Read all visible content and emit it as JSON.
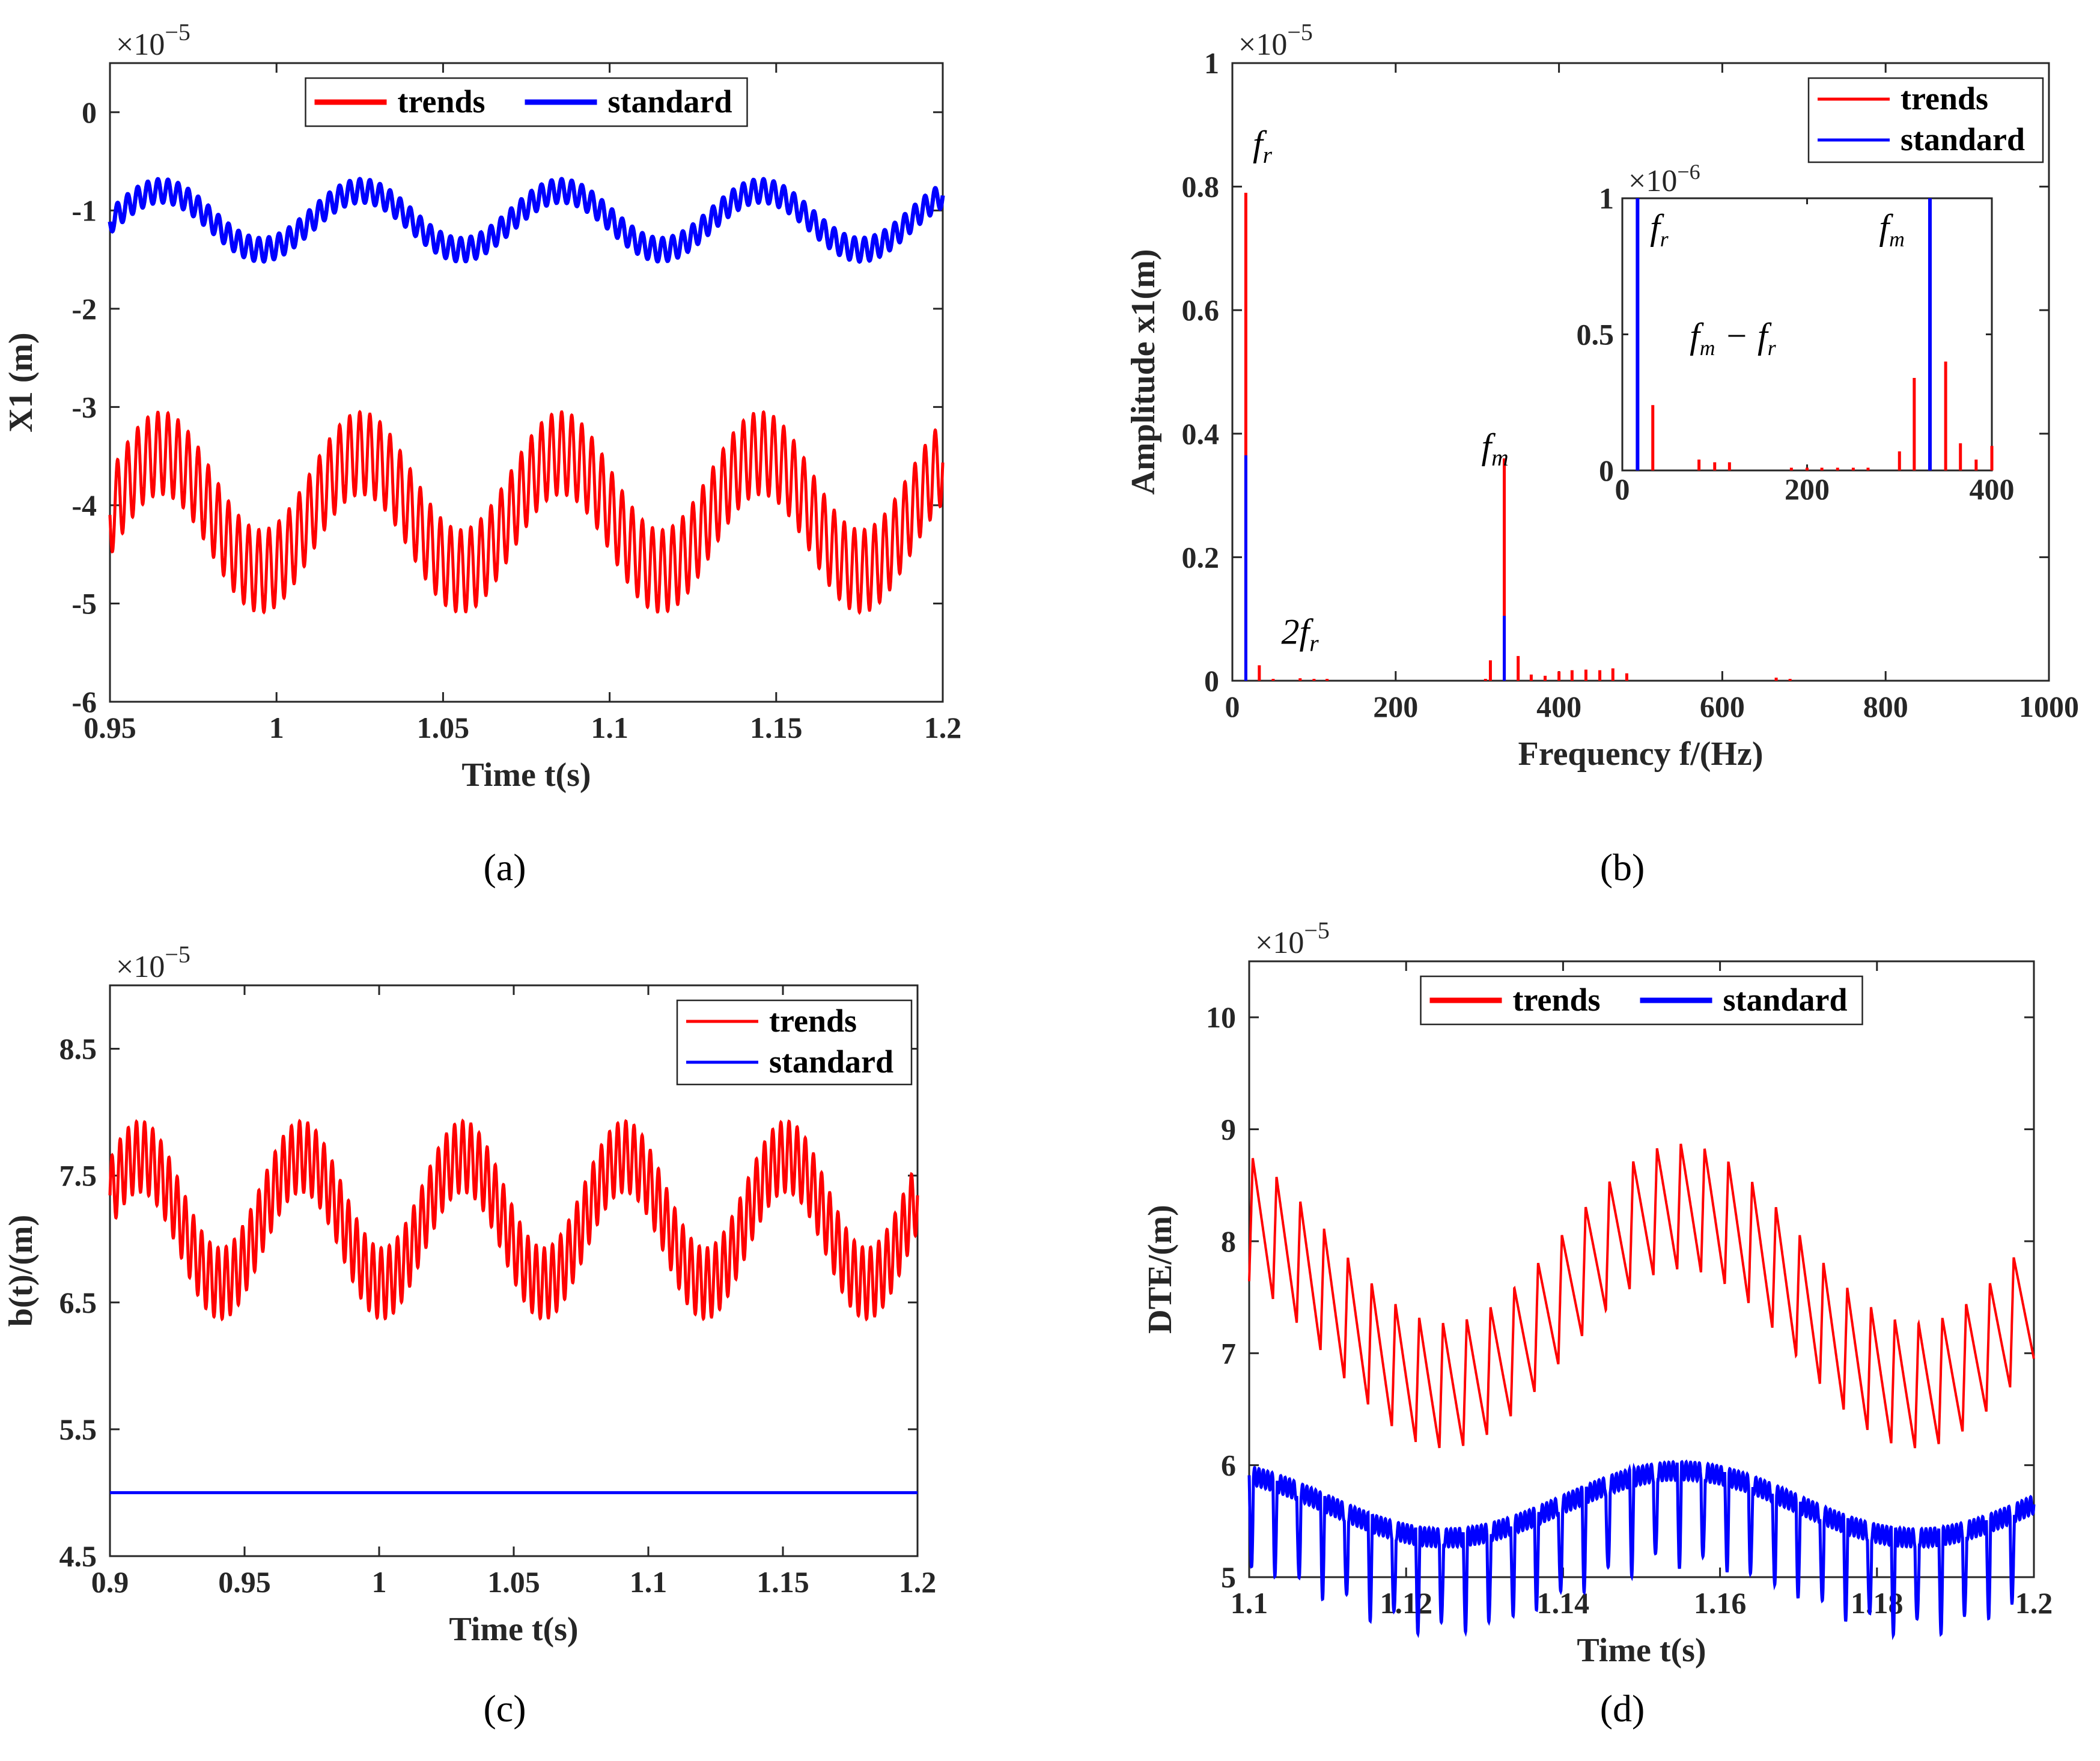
{
  "chart_data": [
    {
      "id": "a",
      "type": "line",
      "caption": "(a)",
      "xlabel": "Time t(s)",
      "ylabel": "X1 (m)",
      "multiplier": "×10",
      "multiplier_exp": "−5",
      "xlim": [
        0.95,
        1.2
      ],
      "ylim": [
        -6,
        0.5
      ],
      "xticks": [
        0.95,
        1,
        1.05,
        1.1,
        1.15,
        1.2
      ],
      "xticklabels": [
        "0.95",
        "1",
        "1.05",
        "1.1",
        "1.15",
        "1.2"
      ],
      "yticks": [
        -6,
        -5,
        -4,
        -3,
        -2,
        -1,
        0
      ],
      "yticklabels": [
        "-6",
        "-5",
        "-4",
        "-3",
        "-2",
        "-1",
        "0"
      ],
      "legend": [
        "trends",
        "standard"
      ],
      "legend_position": "top-center",
      "series": [
        {
          "name": "trends",
          "color": "#ff0000",
          "mean": -4.07,
          "slow_amp": 0.6,
          "slow_period": 0.06,
          "fast_amp": 0.42,
          "fast_freq": 330,
          "phase": 1.0
        },
        {
          "name": "standard",
          "color": "#0000ff",
          "mean": -1.1,
          "slow_amp": 0.3,
          "slow_period": 0.06,
          "fast_amp": 0.12,
          "fast_freq": 330,
          "phase": 1.0
        }
      ]
    },
    {
      "id": "b",
      "type": "bar",
      "caption": "(b)",
      "xlabel": "Frequency f/(Hz)",
      "ylabel": "Amplitude x1(m)",
      "multiplier": "×10",
      "multiplier_exp": "−5",
      "xlim": [
        0,
        1000
      ],
      "ylim": [
        0,
        1
      ],
      "xticks": [
        0,
        200,
        400,
        600,
        800,
        1000
      ],
      "xticklabels": [
        "0",
        "200",
        "400",
        "600",
        "800",
        "1000"
      ],
      "yticks": [
        0,
        0.2,
        0.4,
        0.6,
        0.8,
        1
      ],
      "yticklabels": [
        "0",
        "0.2",
        "0.4",
        "0.6",
        "0.8",
        "1"
      ],
      "legend": [
        "trends",
        "standard"
      ],
      "legend_position": "top-right",
      "annotations": [
        {
          "text": "f",
          "sub": "r",
          "x": 25,
          "y": 0.85
        },
        {
          "text": "2f",
          "sub": "r",
          "x": 60,
          "y": 0.06
        },
        {
          "text": "f",
          "sub": "m",
          "x": 305,
          "y": 0.36
        }
      ],
      "series": [
        {
          "name": "trends",
          "color": "#ff0000",
          "x": [
            16.5,
            33,
            50,
            83,
            100,
            116,
            310,
            316,
            333,
            350,
            366,
            383,
            400,
            416,
            433,
            450,
            466,
            483,
            666,
            683
          ],
          "values": [
            0.79,
            0.025,
            0.003,
            0.004,
            0.003,
            0.003,
            0.003,
            0.033,
            0.36,
            0.04,
            0.01,
            0.008,
            0.015,
            0.017,
            0.018,
            0.017,
            0.02,
            0.012,
            0.005,
            0.003
          ]
        },
        {
          "name": "standard",
          "color": "#0000ff",
          "x": [
            16.5,
            333
          ],
          "values": [
            0.365,
            0.105
          ]
        }
      ],
      "inset": {
        "multiplier": "×10",
        "multiplier_exp": "−6",
        "xlim": [
          0,
          400
        ],
        "ylim": [
          0,
          1
        ],
        "xticks": [
          0,
          200,
          400
        ],
        "xticklabels": [
          "0",
          "200",
          "400"
        ],
        "yticks": [
          0,
          0.5,
          1
        ],
        "yticklabels": [
          "0",
          "0.5",
          "1"
        ],
        "annotations": [
          {
            "text": "f",
            "sub": "r",
            "x": 30,
            "y": 0.85
          },
          {
            "text": "f",
            "sub": "m",
            "x": 278,
            "y": 0.85
          },
          {
            "text": "f",
            "sub": "m",
            "text2": " − f",
            "sub2": "r",
            "x": 190,
            "y": 0.45
          }
        ],
        "series": [
          {
            "name": "trends",
            "color": "#ff0000",
            "x": [
              33,
              83,
              100,
              116,
              183,
              200,
              216,
              233,
              250,
              266,
              300,
              316,
              350,
              366,
              383,
              400
            ],
            "values": [
              0.24,
              0.04,
              0.03,
              0.03,
              0.01,
              0.01,
              0.01,
              0.01,
              0.01,
              0.01,
              0.07,
              0.34,
              0.4,
              0.1,
              0.04,
              0.09
            ]
          },
          {
            "name": "standard",
            "color": "#0000ff",
            "x": [
              16.5,
              333
            ],
            "values": [
              1,
              1
            ]
          }
        ]
      }
    },
    {
      "id": "c",
      "type": "line",
      "caption": "(c)",
      "xlabel": "Time t(s)",
      "ylabel": "b(t)/(m)",
      "multiplier": "×10",
      "multiplier_exp": "−5",
      "xlim": [
        0.9,
        1.2
      ],
      "ylim": [
        4.5,
        9
      ],
      "xticks": [
        0.9,
        0.95,
        1,
        1.05,
        1.1,
        1.15,
        1.2
      ],
      "xticklabels": [
        "0.9",
        "0.95",
        "1",
        "1.05",
        "1.1",
        "1.15",
        "1.2"
      ],
      "yticks": [
        4.5,
        5.5,
        6.5,
        7.5,
        8.5
      ],
      "yticklabels": [
        "4.5",
        "5.5",
        "6.5",
        "7.5",
        "8.5"
      ],
      "legend": [
        "trends",
        "standard"
      ],
      "legend_position": "top-right",
      "series": [
        {
          "name": "trends",
          "color": "#ff0000",
          "mean": 7.15,
          "slow_amp": 0.5,
          "slow_period": 0.06,
          "fast_amp": 0.28,
          "fast_freq": 330,
          "phase": 0.4
        },
        {
          "name": "standard",
          "color": "#0000ff",
          "mean": 5.0,
          "slow_amp": 0,
          "slow_period": 0.06,
          "fast_amp": 0,
          "fast_freq": 330,
          "phase": 0
        }
      ]
    },
    {
      "id": "d",
      "type": "line",
      "caption": "(d)",
      "xlabel": "Time t(s)",
      "ylabel": "DTE/(m)",
      "multiplier": "×10",
      "multiplier_exp": "−5",
      "xlim": [
        1.1,
        1.2
      ],
      "ylim": [
        5,
        10.5
      ],
      "xticks": [
        1.1,
        1.12,
        1.14,
        1.16,
        1.18,
        1.2
      ],
      "xticklabels": [
        "1.1",
        "1.12",
        "1.14",
        "1.16",
        "1.18",
        "1.2"
      ],
      "yticks": [
        5,
        6,
        7,
        8,
        9,
        10
      ],
      "yticklabels": [
        "5",
        "6",
        "7",
        "8",
        "9",
        "10"
      ],
      "legend": [
        "trends",
        "standard"
      ],
      "legend_position": "top-center",
      "series": [
        {
          "name": "trends",
          "color": "#ff0000",
          "mean": 7.3,
          "slow_amp": 0.8,
          "slow_period": 0.06,
          "fast_amp": 0.7,
          "fast_freq": 330,
          "phase": 0
        },
        {
          "name": "standard",
          "color": "#0000ff",
          "mean": 5.65,
          "slow_amp": 0.3,
          "slow_period": 0.06,
          "fast_amp": 0.5,
          "fast_freq": 330,
          "phase": 0
        }
      ]
    }
  ]
}
